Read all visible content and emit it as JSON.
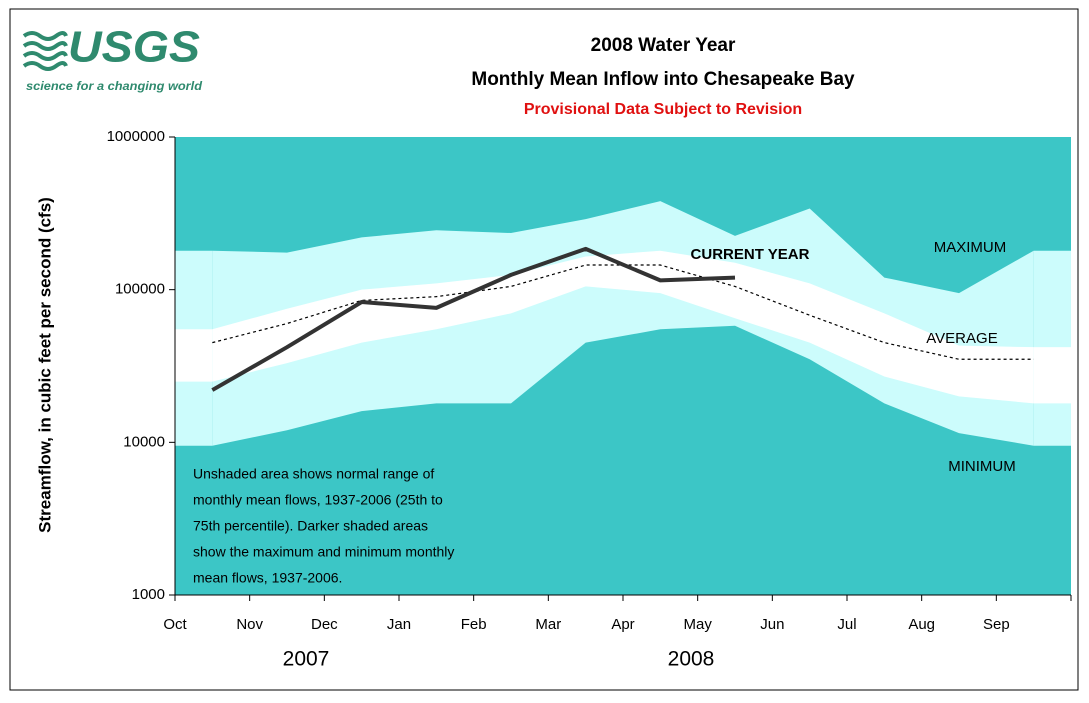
{
  "logo": {
    "text": "USGS",
    "tagline": "science for a changing world"
  },
  "chart_data": {
    "type": "range-band",
    "title": "2008 Water Year",
    "subtitle": "Monthly Mean Inflow into Chesapeake Bay",
    "note": "Provisional Data Subject to Revision",
    "y_label": "Streamflow, in cubic feet per second (cfs)",
    "categories": [
      "Oct",
      "Nov",
      "Dec",
      "Jan",
      "Feb",
      "Mar",
      "Apr",
      "May",
      "Jun",
      "Jul",
      "Aug",
      "Sep"
    ],
    "year_labels": [
      "2007",
      "2008"
    ],
    "log_scale": true,
    "ylim": [
      1000,
      1000000
    ],
    "yticks": [
      1000,
      10000,
      100000,
      1000000
    ],
    "series": [
      {
        "name": "MAXIMUM",
        "color": "#3cc6c6",
        "values": [
          180000,
          175000,
          220000,
          245000,
          235000,
          290000,
          380000,
          225000,
          340000,
          120000,
          95000,
          180000
        ]
      },
      {
        "color": "#ccfcfc",
        "values": [
          55000,
          75000,
          100000,
          110000,
          125000,
          165000,
          180000,
          150000,
          110000,
          70000,
          43000,
          42000
        ]
      },
      {
        "name": "AVERAGE",
        "color": "#000000",
        "values": [
          45000,
          60000,
          85000,
          90000,
          105000,
          145000,
          145000,
          105000,
          68000,
          45000,
          35000,
          35000
        ]
      },
      {
        "color": "#ffffff",
        "values": [
          25000,
          33000,
          45000,
          55000,
          70000,
          105000,
          95000,
          65000,
          45000,
          27000,
          20000,
          18000
        ]
      },
      {
        "name": "MINIMUM",
        "color": "#3cc6c6",
        "values": [
          9500,
          12000,
          16000,
          18000,
          18000,
          45000,
          55000,
          58000,
          35000,
          18000,
          11500,
          9500
        ]
      },
      {
        "name": "CURRENT YEAR",
        "color": "#333333",
        "values": [
          22000,
          42000,
          83000,
          76000,
          125000,
          185000,
          115000,
          120000,
          null,
          null,
          null,
          null
        ]
      }
    ],
    "footnote_lines": [
      "Unshaded area shows normal range of",
      "monthly mean flows, 1937-2006 (25th to",
      "75th percentile).  Darker shaded areas",
      "show the maximum and minimum monthly",
      "mean flows, 1937-2006."
    ]
  }
}
